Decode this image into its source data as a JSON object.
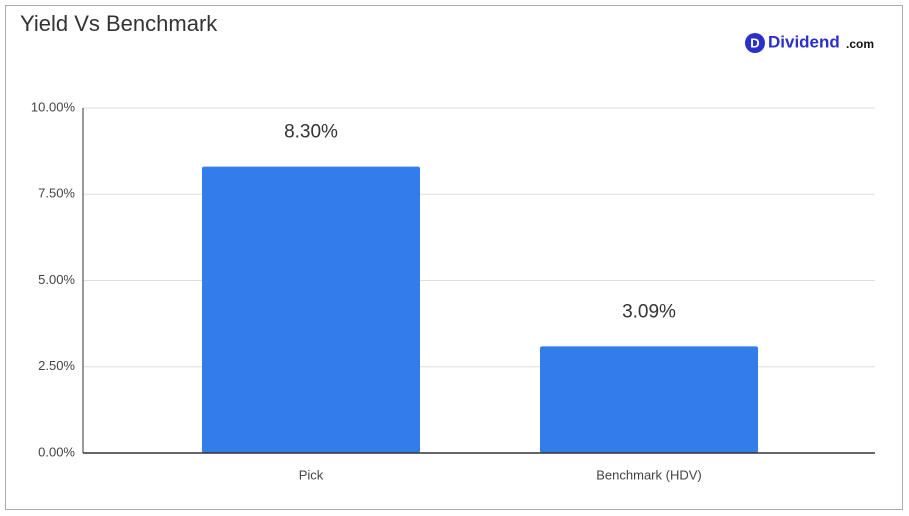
{
  "chart_data": {
    "type": "bar",
    "title": "Yield Vs Benchmark",
    "categories": [
      "Pick",
      "Benchmark (HDV)"
    ],
    "values": [
      8.3,
      3.09
    ],
    "value_labels": [
      "8.30%",
      "3.09%"
    ],
    "color": "#327de9",
    "ylim": [
      0,
      10
    ],
    "yticks": [
      {
        "value": 0,
        "label": "0.00%"
      },
      {
        "value": 2.5,
        "label": "2.50%"
      },
      {
        "value": 5,
        "label": "5.00%"
      },
      {
        "value": 7.5,
        "label": "7.50%"
      },
      {
        "value": 10,
        "label": "10.00%"
      }
    ],
    "grid": true
  },
  "logo": {
    "icon": "D",
    "name": "Dividend",
    "suffix": ".com"
  }
}
